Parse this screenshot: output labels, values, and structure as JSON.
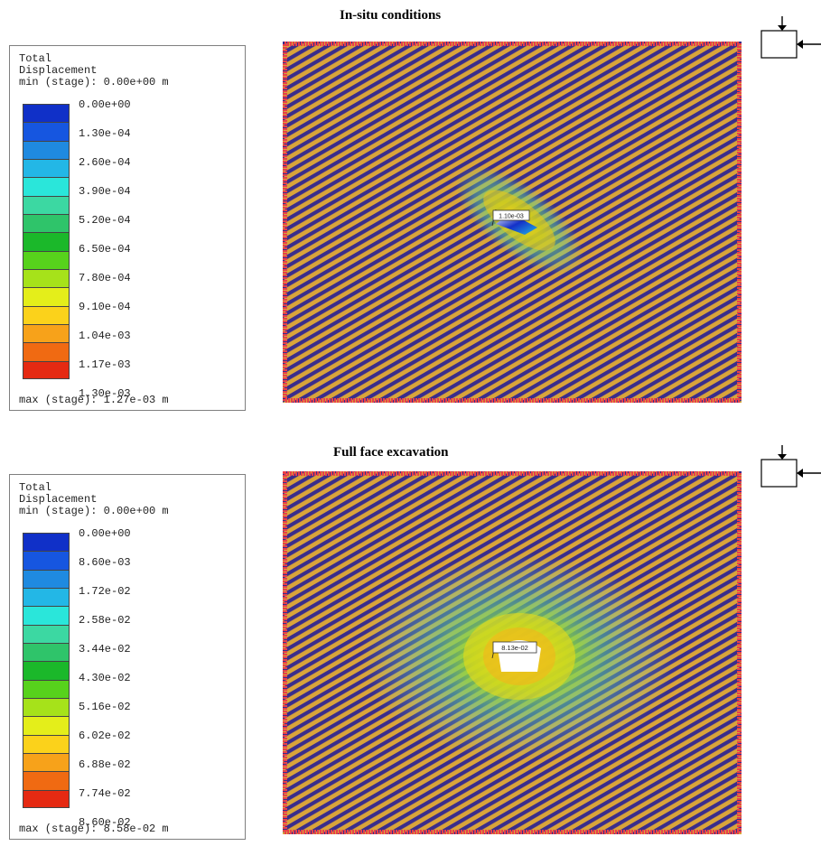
{
  "panels": [
    {
      "title": "In-situ conditions",
      "legend": {
        "header": [
          "Total",
          "Displacement",
          "min (stage): 0.00e+00 m"
        ],
        "ticks": [
          "0.00e+00",
          "1.30e-04",
          "2.60e-04",
          "3.90e-04",
          "5.20e-04",
          "6.50e-04",
          "7.80e-04",
          "9.10e-04",
          "1.04e-03",
          "1.17e-03",
          "1.30e-03"
        ],
        "footer": "max (stage): 1.27e-03 m"
      },
      "annotation": "1.10e-03",
      "pattern": "insitu"
    },
    {
      "title": "Full face excavation",
      "legend": {
        "header": [
          "Total",
          "Displacement",
          "min (stage): 0.00e+00 m"
        ],
        "ticks": [
          "0.00e+00",
          "8.60e-03",
          "1.72e-02",
          "2.58e-02",
          "3.44e-02",
          "4.30e-02",
          "5.16e-02",
          "6.02e-02",
          "6.88e-02",
          "7.74e-02",
          "8.60e-02"
        ],
        "footer": "max (stage): 8.58e-02 m"
      },
      "annotation": "8.13e-02",
      "pattern": "excavation"
    }
  ],
  "colors": {
    "scale": [
      "#1030c8",
      "#1656e0",
      "#1f8ae0",
      "#23b7e6",
      "#2ae6da",
      "#3cd8a2",
      "#2fc46a",
      "#1bb82a",
      "#57d21c",
      "#a6e21a",
      "#e4ee1a",
      "#fbd21b",
      "#f7a21a",
      "#f06a12",
      "#e52a12"
    ],
    "hatch_a": "#d9a43a",
    "hatch_b": "#3a2d8c",
    "border": "#e8404a"
  },
  "icon": "boundary-support-icon"
}
